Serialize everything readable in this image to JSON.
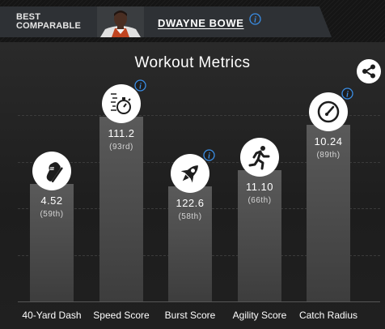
{
  "header": {
    "best_comparable_label": "BEST\nCOMPARABLE",
    "player_name": "DWAYNE BOWE",
    "info_icon": "info-icon"
  },
  "title": "Workout Metrics",
  "share_icon": "share-icon",
  "colors": {
    "bar_top": "#5a5a5a",
    "bar_bottom": "#3d3d3d",
    "background": "#1d1d1d",
    "info": "#3a8ee6"
  },
  "metrics": [
    {
      "label": "40-Yard Dash",
      "value": "4.52",
      "rank": "(59th)",
      "icon": "running-shoe-icon",
      "info": false
    },
    {
      "label": "Speed Score",
      "value": "111.2",
      "rank": "(93rd)",
      "icon": "stopwatch-icon",
      "info": true
    },
    {
      "label": "Burst Score",
      "value": "122.6",
      "rank": "(58th)",
      "icon": "rocket-icon",
      "info": true
    },
    {
      "label": "Agility Score",
      "value": "11.10",
      "rank": "(66th)",
      "icon": "running-person-icon",
      "info": false
    },
    {
      "label": "Catch Radius",
      "value": "10.24",
      "rank": "(89th)",
      "icon": "gauge-icon",
      "info": true
    }
  ],
  "chart_data": {
    "type": "bar",
    "categories": [
      "40-Yard Dash",
      "Speed Score",
      "Burst Score",
      "Agility Score",
      "Catch Radius"
    ],
    "values": [
      59,
      93,
      58,
      66,
      89
    ],
    "value_labels": [
      "4.52",
      "111.2",
      "122.6",
      "11.10",
      "10.24"
    ],
    "rank_labels": [
      "(59th)",
      "(93rd)",
      "(58th)",
      "(66th)",
      "(89th)"
    ],
    "title": "Workout Metrics",
    "ylim": [
      0,
      100
    ],
    "grid": true
  }
}
